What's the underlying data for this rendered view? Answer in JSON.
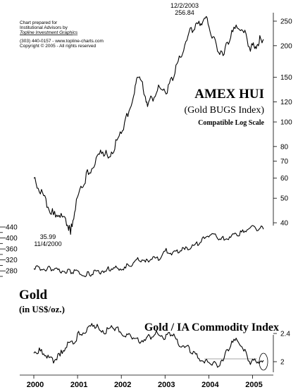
{
  "credit": {
    "line1": "Chart prepared for",
    "line2": "Institutional Advisors by",
    "line3": "Topline Investment Graphics",
    "line4": "(303) 440-0157 - www.topline-charts.com",
    "line5": "Copyright © 2005 - All rights reserved"
  },
  "chart_data": [
    {
      "type": "line",
      "title": "AMEX HUI",
      "subtitle": "(Gold BUGS Index)",
      "note": "Compatible Log Scale",
      "y_scale": "log",
      "y_ticks": [
        40,
        50,
        60,
        70,
        80,
        100,
        120,
        150,
        200,
        250
      ],
      "x_ticks": [
        "2000",
        "2001",
        "2002",
        "2003",
        "2004",
        "2005"
      ],
      "x_range": [
        2000.0,
        2005.25
      ],
      "annotations": [
        {
          "label": "12/2/2003",
          "value": "256.84",
          "x": 2003.92,
          "y": 256.84
        },
        {
          "label": "11/4/2000",
          "value": "35.99",
          "x": 2000.84,
          "y": 35.99
        }
      ],
      "series": [
        {
          "x": [
            2000.0,
            2000.15,
            2000.3,
            2000.45,
            2000.6,
            2000.75,
            2000.84,
            2000.95,
            2001.1,
            2001.25,
            2001.4,
            2001.55,
            2001.7,
            2001.85,
            2002.0,
            2002.15,
            2002.3,
            2002.4,
            2002.5,
            2002.6,
            2002.75,
            2002.9,
            2003.05,
            2003.2,
            2003.35,
            2003.5,
            2003.65,
            2003.8,
            2003.92,
            2004.05,
            2004.2,
            2004.35,
            2004.5,
            2004.65,
            2004.8,
            2004.95,
            2005.05,
            2005.15,
            2005.25
          ],
          "y": [
            60,
            52,
            46,
            43,
            42,
            39,
            35.99,
            45,
            55,
            62,
            68,
            75,
            72,
            78,
            90,
            105,
            130,
            150,
            135,
            115,
            125,
            135,
            130,
            150,
            180,
            210,
            230,
            240,
            256.84,
            220,
            190,
            185,
            215,
            235,
            225,
            190,
            195,
            205,
            212
          ]
        }
      ]
    },
    {
      "type": "line",
      "title": "Gold",
      "subtitle": "(in US$/oz.)",
      "y_ticks": [
        260,
        280,
        300,
        320,
        340,
        360,
        380,
        400,
        420,
        440
      ],
      "y_tick_labels_visible": [
        "280",
        "320",
        "360",
        "400",
        "440"
      ],
      "series": [
        {
          "x": [
            2000.0,
            2000.15,
            2000.3,
            2000.45,
            2000.6,
            2000.75,
            2000.9,
            2001.05,
            2001.2,
            2001.35,
            2001.5,
            2001.65,
            2001.8,
            2001.95,
            2002.1,
            2002.25,
            2002.4,
            2002.55,
            2002.7,
            2002.85,
            2003.0,
            2003.15,
            2003.3,
            2003.45,
            2003.6,
            2003.75,
            2003.9,
            2004.05,
            2004.2,
            2004.35,
            2004.5,
            2004.65,
            2004.8,
            2004.95,
            2005.1,
            2005.25
          ],
          "y": [
            288,
            282,
            285,
            282,
            276,
            272,
            270,
            268,
            262,
            266,
            272,
            278,
            285,
            282,
            290,
            300,
            318,
            312,
            322,
            318,
            352,
            338,
            345,
            358,
            365,
            372,
            398,
            412,
            398,
            392,
            402,
            408,
            420,
            438,
            426,
            432
          ]
        }
      ]
    },
    {
      "type": "line",
      "title": "Gold / IA Commodity Index",
      "y_ticks": [
        2,
        2.4
      ],
      "y_tick_labels": [
        "2",
        "2.4"
      ],
      "y_range": [
        1.85,
        2.55
      ],
      "reference_line": 2.0,
      "series": [
        {
          "x": [
            2000.0,
            2000.15,
            2000.3,
            2000.45,
            2000.6,
            2000.75,
            2000.9,
            2001.05,
            2001.2,
            2001.35,
            2001.5,
            2001.65,
            2001.8,
            2001.95,
            2002.1,
            2002.25,
            2002.4,
            2002.55,
            2002.7,
            2002.85,
            2003.0,
            2003.15,
            2003.3,
            2003.45,
            2003.6,
            2003.75,
            2003.9,
            2004.05,
            2004.2,
            2004.35,
            2004.5,
            2004.65,
            2004.8,
            2004.95,
            2005.1,
            2005.25
          ],
          "y": [
            2.12,
            2.15,
            2.05,
            1.98,
            2.08,
            2.2,
            2.25,
            2.38,
            2.42,
            2.5,
            2.45,
            2.4,
            2.48,
            2.42,
            2.35,
            2.32,
            2.28,
            2.3,
            2.35,
            2.38,
            2.32,
            2.38,
            2.25,
            2.2,
            2.12,
            2.05,
            1.98,
            1.96,
            1.92,
            2.05,
            2.22,
            2.3,
            2.15,
            1.96,
            1.98,
            2.02
          ]
        }
      ]
    }
  ]
}
